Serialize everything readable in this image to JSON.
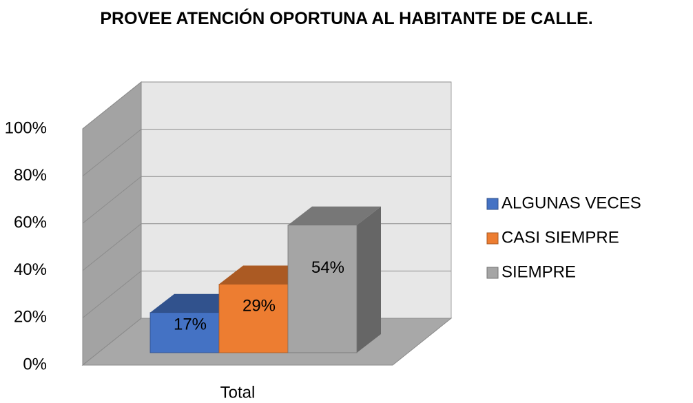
{
  "chart_data": {
    "type": "bar3d",
    "title": "PROVEE ATENCIÓN OPORTUNA AL HABITANTE DE CALLE.",
    "categories": [
      "Total"
    ],
    "series": [
      {
        "name": "ALGUNAS VECES",
        "color": "#4472c4",
        "values": [
          17
        ],
        "value_labels": [
          "17%"
        ]
      },
      {
        "name": "CASI SIEMPRE",
        "color": "#ed7d31",
        "values": [
          29
        ],
        "value_labels": [
          "29%"
        ]
      },
      {
        "name": "SIEMPRE",
        "color": "#a5a5a5",
        "values": [
          54
        ],
        "value_labels": [
          "54%"
        ]
      }
    ],
    "ylim": [
      0,
      100
    ],
    "yticks": [
      {
        "value": 0,
        "label": "0%"
      },
      {
        "value": 20,
        "label": "20%"
      },
      {
        "value": 40,
        "label": "40%"
      },
      {
        "value": 60,
        "label": "60%"
      },
      {
        "value": 80,
        "label": "80%"
      },
      {
        "value": 100,
        "label": "100%"
      }
    ],
    "grid": true,
    "legend": "right"
  }
}
